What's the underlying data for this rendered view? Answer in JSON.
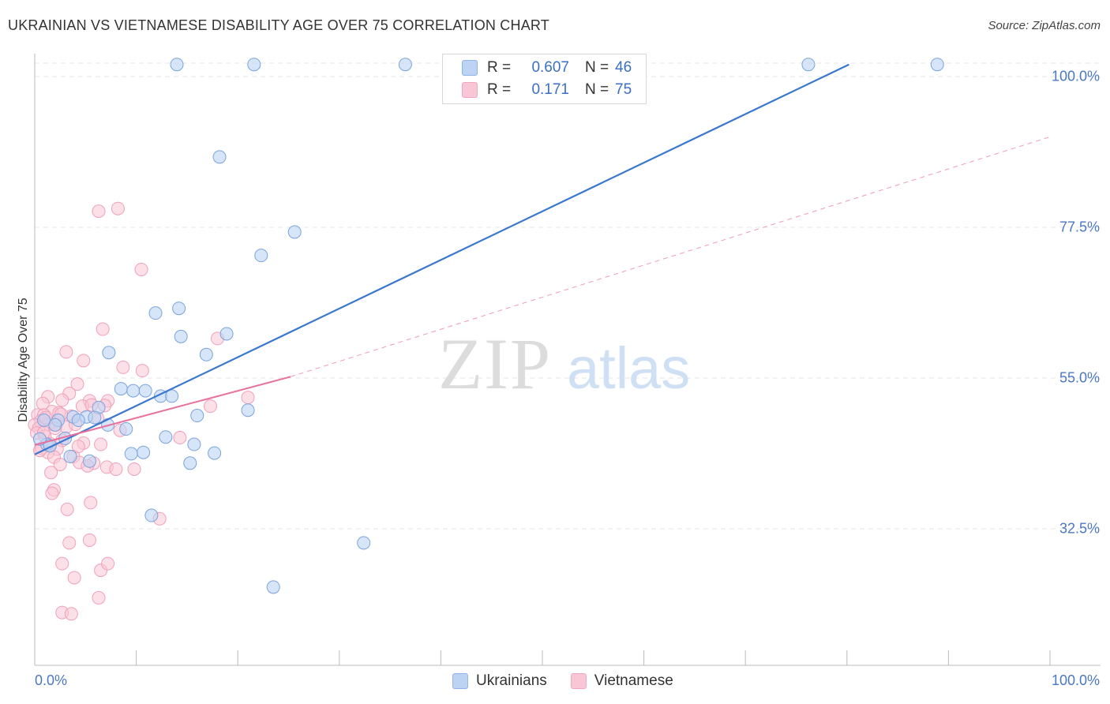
{
  "header": {
    "title": "UKRAINIAN VS VIETNAMESE DISABILITY AGE OVER 75 CORRELATION CHART",
    "source": "Source: ZipAtlas.com"
  },
  "watermark": {
    "zip": "ZIP",
    "atlas": "atlas"
  },
  "legend": {
    "rows": [
      {
        "r_label": "R =",
        "r_value": "0.607",
        "n_label": "N =",
        "n_value": "46",
        "color": "#8fb4e8"
      },
      {
        "r_label": "R =",
        "r_value": "0.171",
        "n_label": "N =",
        "n_value": "75",
        "color": "#f4a6c0"
      }
    ]
  },
  "bottom_legend": {
    "items": [
      "Ukrainians",
      "Vietnamese"
    ]
  },
  "chart_data": {
    "type": "scatter",
    "ylabel": "Disability Age Over 75",
    "xlabel": "",
    "x_tick_labels": [
      "0.0%",
      "100.0%"
    ],
    "y_tick_labels": [
      "100.0%",
      "77.5%",
      "55.0%",
      "32.5%"
    ],
    "y_ticks": [
      100.0,
      77.5,
      55.0,
      32.5
    ],
    "xlim": [
      0,
      100
    ],
    "ylim": [
      10.5,
      101.8
    ],
    "grid": true,
    "colors": {
      "ukrainians": "#3a78d0",
      "vietnamese": "#e8709a",
      "ukr_fill": "#bcd3f3",
      "viet_fill": "#f9c6d6"
    },
    "series": [
      {
        "name": "Ukrainians",
        "trendline": {
          "x": [
            0,
            80.2
          ],
          "y": [
            43.6,
            101.8
          ],
          "style": "solid"
        },
        "points": [
          [
            14,
            101.8
          ],
          [
            21.6,
            101.8
          ],
          [
            36.5,
            101.8
          ],
          [
            76.2,
            101.8
          ],
          [
            88.9,
            101.8
          ],
          [
            18.2,
            88
          ],
          [
            25.6,
            76.8
          ],
          [
            22.3,
            73.3
          ],
          [
            14.2,
            65.4
          ],
          [
            11.9,
            64.7
          ],
          [
            14.4,
            61.2
          ],
          [
            18.9,
            61.6
          ],
          [
            16.9,
            58.5
          ],
          [
            7.3,
            58.8
          ],
          [
            8.5,
            53.4
          ],
          [
            9.7,
            53.1
          ],
          [
            10.9,
            53.1
          ],
          [
            12.4,
            52.3
          ],
          [
            13.5,
            52.3
          ],
          [
            6.3,
            50.6
          ],
          [
            5.1,
            49.2
          ],
          [
            3.8,
            49.2
          ],
          [
            5.9,
            49.1
          ],
          [
            4.3,
            48.7
          ],
          [
            2.3,
            48.7
          ],
          [
            7.2,
            48.0
          ],
          [
            9.0,
            47.4
          ],
          [
            16.0,
            49.4
          ],
          [
            21.0,
            50.2
          ],
          [
            12.9,
            46.2
          ],
          [
            3.0,
            46.0
          ],
          [
            1.2,
            45.1
          ],
          [
            1.5,
            44.9
          ],
          [
            0.5,
            45.9
          ],
          [
            15.7,
            45.1
          ],
          [
            10.7,
            43.9
          ],
          [
            9.5,
            43.7
          ],
          [
            17.7,
            43.8
          ],
          [
            3.5,
            43.3
          ],
          [
            5.4,
            42.6
          ],
          [
            15.3,
            42.3
          ],
          [
            11.5,
            34.5
          ],
          [
            32.4,
            30.4
          ],
          [
            23.5,
            23.8
          ],
          [
            2.0,
            48.0
          ],
          [
            0.9,
            48.7
          ]
        ]
      },
      {
        "name": "Vietnamese",
        "trendline_solid": {
          "x": [
            0,
            25.2
          ],
          "y": [
            45.0,
            55.2
          ],
          "style": "solid"
        },
        "trendline_dashed": {
          "x": [
            25.2,
            100
          ],
          "y": [
            55.2,
            91.0
          ],
          "style": "dashed"
        },
        "points": [
          [
            6.3,
            79.9
          ],
          [
            8.2,
            80.3
          ],
          [
            10.5,
            71.2
          ],
          [
            6.7,
            62.3
          ],
          [
            3.1,
            58.9
          ],
          [
            4.8,
            57.6
          ],
          [
            8.7,
            56.6
          ],
          [
            10.6,
            56.1
          ],
          [
            18.0,
            60.9
          ],
          [
            4.2,
            54.1
          ],
          [
            3.4,
            52.7
          ],
          [
            1.3,
            52.2
          ],
          [
            2.7,
            51.7
          ],
          [
            5.4,
            51.6
          ],
          [
            7.2,
            51.6
          ],
          [
            0.8,
            51.2
          ],
          [
            4.7,
            50.8
          ],
          [
            5.6,
            51.0
          ],
          [
            17.3,
            50.8
          ],
          [
            21.0,
            52.1
          ],
          [
            1.7,
            50.0
          ],
          [
            2.4,
            49.8
          ],
          [
            0.3,
            49.5
          ],
          [
            0.9,
            49.5
          ],
          [
            3.6,
            49.3
          ],
          [
            6.2,
            49.0
          ],
          [
            0.6,
            48.6
          ],
          [
            1.4,
            48.1
          ],
          [
            2.1,
            48.0
          ],
          [
            0.0,
            48.0
          ],
          [
            3.1,
            47.7
          ],
          [
            4.0,
            48.1
          ],
          [
            0.4,
            47.5
          ],
          [
            8.4,
            47.2
          ],
          [
            0.2,
            46.8
          ],
          [
            1.0,
            46.3
          ],
          [
            2.7,
            45.7
          ],
          [
            14.3,
            46.1
          ],
          [
            1.5,
            45.2
          ],
          [
            4.8,
            45.3
          ],
          [
            6.5,
            45.1
          ],
          [
            0.7,
            44.5
          ],
          [
            2.2,
            44.4
          ],
          [
            1.3,
            43.9
          ],
          [
            3.8,
            43.3
          ],
          [
            1.9,
            43.2
          ],
          [
            4.4,
            42.4
          ],
          [
            2.5,
            42.1
          ],
          [
            5.8,
            42.3
          ],
          [
            7.1,
            41.7
          ],
          [
            8.0,
            41.4
          ],
          [
            9.8,
            41.4
          ],
          [
            5.2,
            41.9
          ],
          [
            1.6,
            40.9
          ],
          [
            1.9,
            38.3
          ],
          [
            1.7,
            37.8
          ],
          [
            5.5,
            36.4
          ],
          [
            3.2,
            35.4
          ],
          [
            12.3,
            34.0
          ],
          [
            5.4,
            30.8
          ],
          [
            3.4,
            30.4
          ],
          [
            2.7,
            27.3
          ],
          [
            6.5,
            26.3
          ],
          [
            7.2,
            27.3
          ],
          [
            3.9,
            25.2
          ],
          [
            6.3,
            22.2
          ],
          [
            2.7,
            20.0
          ],
          [
            3.6,
            19.8
          ],
          [
            4.3,
            44.8
          ],
          [
            0.9,
            46.9
          ],
          [
            1.1,
            49.1
          ],
          [
            2.0,
            47.5
          ],
          [
            0.5,
            44.2
          ],
          [
            2.6,
            49.6
          ],
          [
            6.9,
            50.9
          ]
        ]
      }
    ]
  }
}
